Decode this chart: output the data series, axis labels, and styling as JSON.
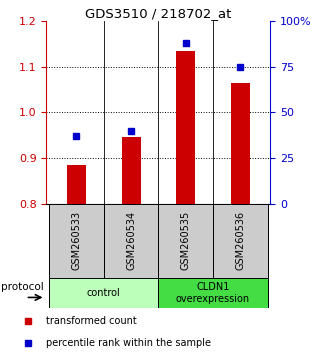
{
  "title": "GDS3510 / 218702_at",
  "samples": [
    "GSM260533",
    "GSM260534",
    "GSM260535",
    "GSM260536"
  ],
  "bar_values": [
    0.885,
    0.945,
    1.135,
    1.065
  ],
  "percentile_values": [
    37,
    40,
    88,
    75
  ],
  "bar_color": "#cc0000",
  "dot_color": "#0000cc",
  "ylim_left": [
    0.8,
    1.2
  ],
  "ylim_right": [
    0,
    100
  ],
  "yticks_left": [
    0.8,
    0.9,
    1.0,
    1.1,
    1.2
  ],
  "yticks_right": [
    0,
    25,
    50,
    75,
    100
  ],
  "ytick_labels_right": [
    "0",
    "25",
    "50",
    "75",
    "100%"
  ],
  "groups": [
    {
      "label": "control",
      "samples": [
        0,
        1
      ],
      "color": "#bbffbb"
    },
    {
      "label": "CLDN1\noverexpression",
      "samples": [
        2,
        3
      ],
      "color": "#44dd44"
    }
  ],
  "group_box_color": "#cccccc",
  "protocol_label": "protocol",
  "legend_bar_label": "transformed count",
  "legend_dot_label": "percentile rank within the sample",
  "bar_width": 0.35,
  "baseline": 0.8
}
